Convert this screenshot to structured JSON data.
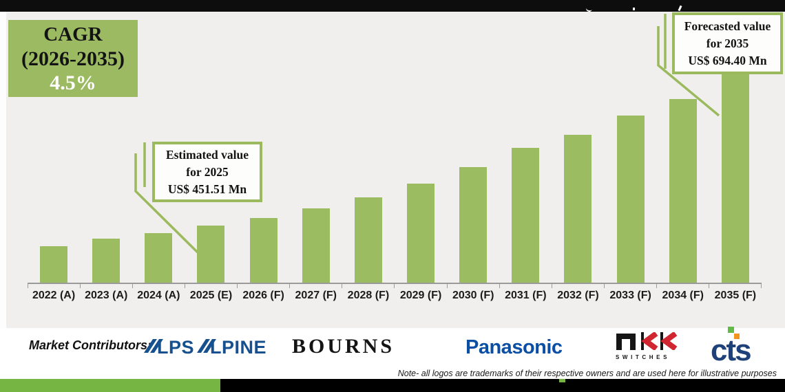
{
  "cagr_box": {
    "line1": "CAGR",
    "line2": "(2026-2035)",
    "line3": "4.5%"
  },
  "callouts": {
    "estimated": {
      "line1": "Estimated value",
      "line2": "for 2025",
      "line3": "US$ 451.51 Mn"
    },
    "forecast": {
      "line1": "Forecasted value",
      "line2": "for 2035",
      "line3": "US$ 694.40 Mn"
    }
  },
  "chart_data": {
    "type": "bar",
    "categories": [
      "2022 (A)",
      "2023 (A)",
      "2024 (A)",
      "2025 (E)",
      "2026 (F)",
      "2027 (F)",
      "2028 (F)",
      "2029 (F)",
      "2030 (F)",
      "2031 (F)",
      "2032 (F)",
      "2033 (F)",
      "2034 (F)",
      "2035 (F)"
    ],
    "values": [
      418.5,
      430.6,
      439.4,
      451.51,
      463.6,
      479.0,
      496.6,
      518.6,
      545.0,
      576.8,
      597.7,
      628.5,
      654.8,
      694.4
    ],
    "unit": "US$ Mn",
    "xlabel": "",
    "ylabel": "",
    "ylim": [
      360.3,
      700
    ],
    "baseline_value": 360.3,
    "grid": false,
    "legend": false,
    "bar_color": "#9bbc60",
    "labeled_values": {
      "2025 (E)": 451.51,
      "2035 (F)": 694.4
    },
    "annotations": {
      "cagr_2026_2035": "4.5%",
      "estimated_2025": "US$ 451.51 Mn",
      "forecast_2035": "US$ 694.40 Mn"
    }
  },
  "footer": {
    "contributors_label": "Market Contributors:",
    "logos": {
      "alps": {
        "name": "ALPS ALPINE",
        "seg1": "LPS",
        "seg2": "LPINE"
      },
      "bourns": {
        "name": "Bourns",
        "text": "BOURNS"
      },
      "panasonic": {
        "name": "Panasonic",
        "text": "Panasonic"
      },
      "nkk": {
        "name": "NKK Switches",
        "sub": "SWITCHES"
      },
      "cts": {
        "name": "CTS",
        "text": "cts"
      }
    },
    "note": "Note- all logos are trademarks of their respective owners and are used here for illustrative purposes"
  },
  "colors": {
    "bar_green": "#9bbc60",
    "badge_green": "#9cba62",
    "callout_border_green": "#9bb95d",
    "bottom_green": "#76b543",
    "alps_blue": "#17508f",
    "panasonic_blue": "#0b4fa5",
    "nkk_red": "#cf2630",
    "cts_navy": "#1d4178",
    "cts_green": "#62bb46",
    "cts_orange": "#f19520",
    "background_gray": "#f0efed",
    "top_bar_black": "#0d0d0d"
  }
}
